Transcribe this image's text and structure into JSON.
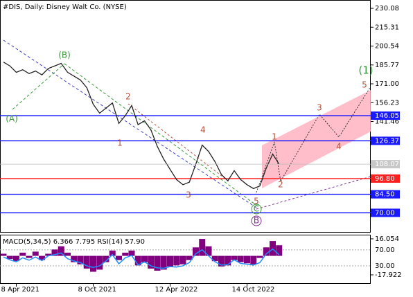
{
  "chart_data": {
    "type": "line",
    "title": "#DIS, Daily:  Disney Walt Co. (NYSE)",
    "categories": [
      null,
      null,
      "8 Apr 2021",
      null,
      null,
      null,
      null,
      null,
      null,
      null,
      null,
      null,
      null,
      null,
      "8 Oct 2021",
      null,
      null,
      null,
      null,
      null,
      null,
      null,
      null,
      null,
      null,
      null,
      "12 Apr 2022",
      null,
      null,
      null,
      null,
      null,
      null,
      null,
      null,
      null,
      null,
      null,
      "14 Oct 2022",
      null,
      null,
      null,
      null,
      null
    ],
    "values": [
      188,
      185,
      180,
      182,
      179,
      181,
      178,
      183,
      185,
      187,
      180,
      177,
      174,
      168,
      155,
      148,
      152,
      156,
      140,
      146,
      154,
      139,
      142,
      135,
      122,
      112,
      104,
      96,
      92,
      94,
      108,
      123,
      118,
      110,
      100,
      95,
      103,
      96,
      92,
      89,
      91,
      105,
      116,
      108.07
    ],
    "color": "#222222",
    "ylim": [
      54.5,
      236.6
    ],
    "yticks": [
      230.08,
      215.31,
      200.54,
      185.77,
      {
        "value": 171,
        "label": "171.00"
      },
      156.23,
      141.46
    ],
    "last_price": {
      "value": 108.07,
      "label": "108.07"
    },
    "levels": [
      {
        "value": 146.05,
        "label": "146.05",
        "color": "#1a1aff"
      },
      {
        "value": 126.37,
        "label": "126.37",
        "color": "#1a1aff"
      },
      {
        "value": 96.8,
        "label": "96.80",
        "color": "#ff2020"
      },
      {
        "value": 84.5,
        "label": "84.50",
        "color": "#1a1aff"
      },
      {
        "value": 70,
        "label": "70.00",
        "color": "#1a1aff"
      }
    ],
    "annotations": [
      {
        "text": "(A)",
        "color": "#3a9a3a"
      },
      {
        "text": "(B)",
        "color": "#3a9a3a"
      },
      {
        "text": "1",
        "color": "#b5503b"
      },
      {
        "text": "2",
        "color": "#b5503b"
      },
      {
        "text": "3",
        "color": "#b5503b"
      },
      {
        "text": "4",
        "color": "#b5503b"
      },
      {
        "text": "5",
        "color": "#b5503b"
      },
      {
        "text": "C",
        "color": "#3a9a3a"
      },
      {
        "text": "B",
        "color": "#7b2a8c"
      },
      {
        "text": "1",
        "color": "#b5503b"
      },
      {
        "text": "2",
        "color": "#b5503b"
      },
      {
        "text": "3",
        "color": "#b5503b"
      },
      {
        "text": "4",
        "color": "#b5503b"
      },
      {
        "text": "5",
        "color": "#b5503b"
      },
      {
        "text": "(1)",
        "color": "#3a9a3a"
      }
    ],
    "indicator": {
      "title": "MACD(5,34,5) 6.366 7.795 RSI(14) 57.90",
      "ylim": [
        -26.4,
        19.3
      ],
      "yticks": [
        {
          "value": 16.054,
          "label": "16.054"
        },
        {
          "value": -17.922,
          "label": "-17.922"
        }
      ],
      "y2lim": [
        -15,
        106
      ],
      "y2ticks": [
        {
          "value": 70,
          "label": "70.00"
        },
        {
          "value": 30,
          "label": "30.00"
        }
      ],
      "histogram_color": "#800080",
      "rsi_color": "#1e90ff",
      "histogram": [
        2,
        -3,
        -5,
        3,
        -2,
        4,
        -4,
        2,
        6,
        9,
        3,
        -6,
        -8,
        -12,
        -15,
        -13,
        -6,
        5,
        -4,
        3,
        5,
        -9,
        -6,
        -12,
        -14,
        -13,
        -10,
        -9,
        -8,
        -4,
        8,
        16,
        9,
        -5,
        -10,
        -9,
        -4,
        -6,
        -7,
        -8,
        -2,
        8,
        14,
        10
      ],
      "rsi": [
        52,
        45,
        40,
        50,
        44,
        52,
        43,
        55,
        58,
        62,
        48,
        42,
        38,
        30,
        26,
        30,
        42,
        58,
        35,
        50,
        56,
        32,
        40,
        30,
        25,
        24,
        28,
        27,
        30,
        38,
        60,
        70,
        55,
        40,
        32,
        33,
        45,
        36,
        34,
        32,
        38,
        60,
        72,
        57.9
      ]
    }
  }
}
